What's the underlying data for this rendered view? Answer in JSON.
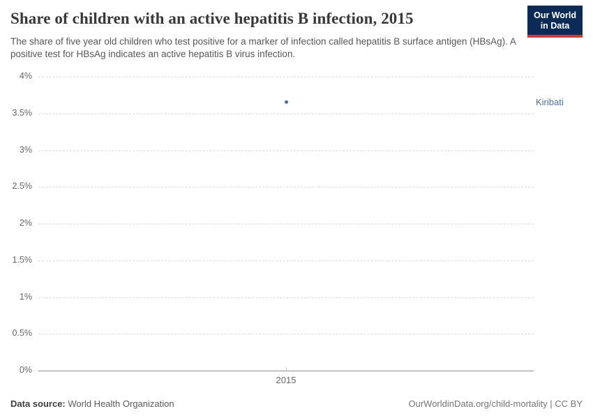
{
  "header": {
    "title": "Share of children with an active hepatitis B infection, 2015",
    "subtitle": "The share of five year old children who test positive for a marker of infection called hepatitis B surface antigen (HBsAg). A positive test for HBsAg indicates an active hepatitis B virus infection.",
    "logo": {
      "line1": "Our World",
      "line2": "in Data"
    }
  },
  "colors": {
    "series": "#4c6da3",
    "entity_label": "#4a72a6",
    "logo_bg": "#0b2b56",
    "logo_accent": "#d93a34"
  },
  "chart_data": {
    "type": "scatter",
    "x": [
      2015
    ],
    "xtick_labels": [
      "2015"
    ],
    "series": [
      {
        "name": "Kiribati",
        "values": [
          3.65
        ]
      }
    ],
    "ylim": [
      0,
      4
    ],
    "grid": true,
    "legend_position": "right-of-point",
    "yticks": [
      {
        "value": 0,
        "label": "0%"
      },
      {
        "value": 0.5,
        "label": "0.5%"
      },
      {
        "value": 1,
        "label": "1%"
      },
      {
        "value": 1.5,
        "label": "1.5%"
      },
      {
        "value": 2,
        "label": "2%"
      },
      {
        "value": 2.5,
        "label": "2.5%"
      },
      {
        "value": 3,
        "label": "3%"
      },
      {
        "value": 3.5,
        "label": "3.5%"
      },
      {
        "value": 4,
        "label": "4%"
      }
    ]
  },
  "footer": {
    "datasource_label": "Data source:",
    "datasource_value": " World Health Organization",
    "credit": "OurWorldinData.org/child-mortality | CC BY"
  }
}
